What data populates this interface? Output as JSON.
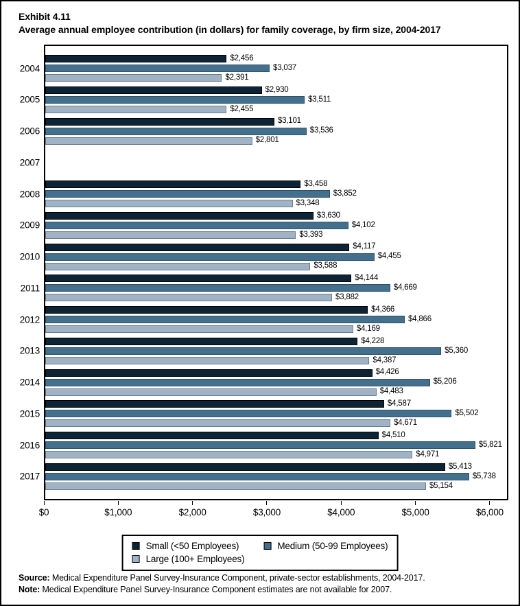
{
  "header": {
    "exhibit": "Exhibit 4.11",
    "title": "Average annual employee contribution (in dollars) for family coverage, by firm size, 2004-2017"
  },
  "chart_data": {
    "type": "bar",
    "orientation": "horizontal",
    "title": "Average annual employee contribution (in dollars) for family coverage, by firm size, 2004-2017",
    "categories": [
      "2004",
      "2005",
      "2006",
      "2007",
      "2008",
      "2009",
      "2010",
      "2011",
      "2012",
      "2013",
      "2014",
      "2015",
      "2016",
      "2017"
    ],
    "series": [
      {
        "name": "Small (<50 Employees)",
        "color": "#0d2436",
        "border_color": "#000000",
        "values": [
          2456,
          2930,
          3101,
          null,
          3458,
          3630,
          4117,
          4144,
          4366,
          4228,
          4426,
          4587,
          4510,
          5413
        ]
      },
      {
        "name": "Medium (50-99 Employees)",
        "color": "#44708e",
        "border_color": "#2d5068",
        "values": [
          3037,
          3511,
          3536,
          null,
          3852,
          4102,
          4455,
          4669,
          4866,
          5360,
          5206,
          5502,
          5821,
          5738
        ]
      },
      {
        "name": "Large (100+ Employees)",
        "color": "#9fb2c6",
        "border_color": "#6e7d89",
        "values": [
          2391,
          2455,
          2801,
          null,
          3348,
          3393,
          3588,
          3882,
          4169,
          4387,
          4483,
          4671,
          4971,
          5154
        ]
      }
    ],
    "value_prefix": "$",
    "xlabel": "",
    "ylabel": "",
    "xlim": [
      0,
      6250
    ],
    "x_ticks": [
      0,
      1000,
      2000,
      3000,
      4000,
      5000,
      6000
    ],
    "x_tick_labels": [
      "$0",
      "$1,000",
      "$2,000",
      "$3,000",
      "$4,000",
      "$5,000",
      "$6,000"
    ],
    "grid": false,
    "data_labels": true,
    "legend_position": "bottom"
  },
  "legend": {
    "items": [
      {
        "label": "Small (<50 Employees)",
        "color": "#0d2436"
      },
      {
        "label": "Medium (50-99 Employees)",
        "color": "#44708e"
      },
      {
        "label": "Large (100+ Employees)",
        "color": "#9fb2c6"
      }
    ]
  },
  "footer": {
    "source_label": "Source:",
    "source_text": " Medical Expenditure Panel Survey-Insurance Component, private-sector establishments, 2004-2017.",
    "note_label": "Note:",
    "note_text": " Medical Expenditure Panel Survey-Insurance Component estimates are not available for 2007."
  }
}
